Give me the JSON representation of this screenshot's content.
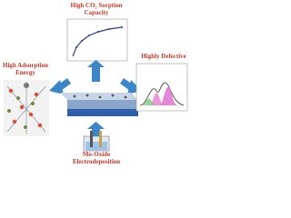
{
  "top_label": {
    "lines": [
      "High CO₂ Sorption",
      "Capacity"
    ]
  },
  "left_label": {
    "lines": [
      "High Adsorption",
      "Energy"
    ]
  },
  "right_label": {
    "lines": [
      "Highly Defective"
    ]
  },
  "bottom_label": {
    "lines": [
      "Mo-Oxide",
      "Electrodeposition"
    ]
  }
}
